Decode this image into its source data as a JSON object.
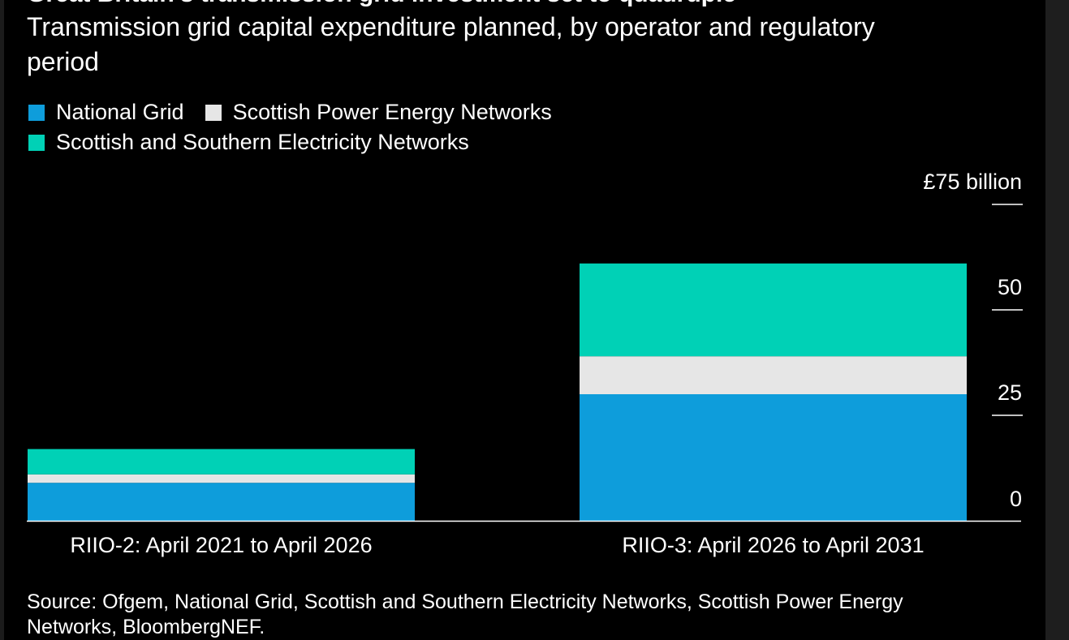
{
  "chart_data": {
    "type": "bar",
    "stacked": true,
    "title": "Great Britain's transmission grid investment set to quadruple",
    "subtitle": "Transmission grid capital expenditure planned, by operator and regulatory period",
    "categories": [
      "RIIO-2: April 2021 to April 2026",
      "RIIO-3: April 2026 to April 2031"
    ],
    "series": [
      {
        "name": "National Grid",
        "color": "#0e9ddb",
        "values": [
          9.0,
          30.0
        ]
      },
      {
        "name": "Scottish Power Energy Networks",
        "color": "#e6e6e6",
        "values": [
          2.0,
          9.0
        ]
      },
      {
        "name": "Scottish and Southern Electricity Networks",
        "color": "#00d1b6",
        "values": [
          6.0,
          22.0
        ]
      }
    ],
    "yticks": [
      0,
      25,
      50,
      75
    ],
    "ytick_labels": [
      "0",
      "25",
      "50",
      "£75 billion"
    ],
    "ylim": [
      0,
      75
    ],
    "legend_position": "top-left",
    "y_axis_position": "right",
    "source": "Source: Ofgem, National Grid, Scottish and Southern Electricity Networks, Scottish Power Energy Networks, BloombergNEF."
  }
}
